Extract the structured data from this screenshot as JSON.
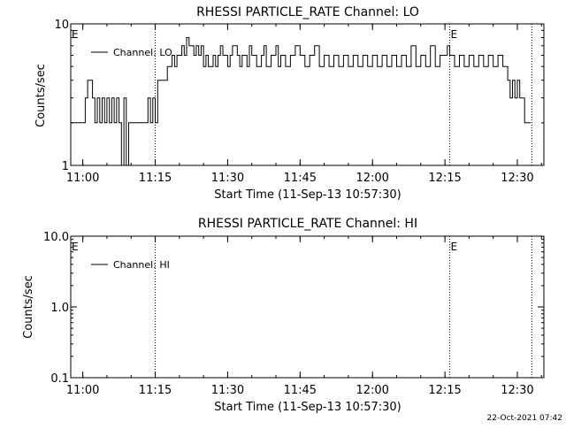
{
  "timestamp": "22-Oct-2021 07:42",
  "chart_data": [
    {
      "type": "line",
      "title": "RHESSI PARTICLE_RATE Channel: LO",
      "xlabel": "Start Time (11-Sep-13 10:57:30)",
      "ylabel": "Counts/sec",
      "yscale": "log",
      "ylim": [
        1,
        10
      ],
      "xlim": [
        "10:57:30",
        "12:35:30"
      ],
      "x_ticks": [
        "11:00",
        "11:15",
        "11:30",
        "11:45",
        "12:00",
        "12:15",
        "12:30"
      ],
      "y_ticks": [
        "1",
        "10"
      ],
      "flags": [
        {
          "label": "E",
          "time": "10:57:30"
        },
        {
          "label": "E",
          "time": "12:16:00"
        }
      ],
      "vlines": [
        "11:15:00",
        "12:16:00",
        "12:33:00"
      ],
      "series": [
        {
          "name": "Channel: LO",
          "x": [
            "10:57:30",
            "10:58:00",
            "10:59:00",
            "11:00:00",
            "11:00:30",
            "11:01:00",
            "11:02:00",
            "11:02:30",
            "11:03:00",
            "11:03:30",
            "11:04:00",
            "11:04:30",
            "11:05:00",
            "11:05:30",
            "11:06:00",
            "11:06:30",
            "11:07:00",
            "11:07:30",
            "11:08:00",
            "11:08:30",
            "11:09:00",
            "11:09:30",
            "11:10:00",
            "11:11:00",
            "11:12:00",
            "11:13:00",
            "11:13:30",
            "11:14:00",
            "11:14:30",
            "11:15:00",
            "11:15:30",
            "11:16:00",
            "11:17:00",
            "11:17:30",
            "11:18:00",
            "11:18:30",
            "11:19:00",
            "11:19:30",
            "11:20:00",
            "11:20:30",
            "11:21:00",
            "11:21:30",
            "11:22:00",
            "11:23:00",
            "11:23:30",
            "11:24:00",
            "11:24:30",
            "11:25:00",
            "11:25:30",
            "11:26:00",
            "11:27:00",
            "11:27:30",
            "11:28:00",
            "11:28:30",
            "11:29:00",
            "11:30:00",
            "11:30:30",
            "11:31:00",
            "11:32:00",
            "11:32:30",
            "11:33:00",
            "11:34:00",
            "11:34:30",
            "11:35:00",
            "11:36:00",
            "11:37:00",
            "11:37:30",
            "11:38:00",
            "11:39:00",
            "11:40:00",
            "11:40:30",
            "11:41:00",
            "11:42:00",
            "11:43:00",
            "11:44:00",
            "11:45:00",
            "11:46:00",
            "11:47:00",
            "11:48:00",
            "11:49:00",
            "11:50:00",
            "11:51:00",
            "11:52:00",
            "11:53:00",
            "11:54:00",
            "11:55:00",
            "11:56:00",
            "11:57:00",
            "11:58:00",
            "11:59:00",
            "12:00:00",
            "12:01:00",
            "12:02:00",
            "12:03:00",
            "12:04:00",
            "12:05:00",
            "12:06:00",
            "12:07:00",
            "12:08:00",
            "12:09:00",
            "12:10:00",
            "12:11:00",
            "12:12:00",
            "12:13:00",
            "12:14:00",
            "12:15:00",
            "12:15:30",
            "12:16:00",
            "12:17:00",
            "12:18:00",
            "12:19:00",
            "12:20:00",
            "12:21:00",
            "12:22:00",
            "12:23:00",
            "12:24:00",
            "12:25:00",
            "12:26:00",
            "12:27:00",
            "12:28:00",
            "12:28:30",
            "12:29:00",
            "12:29:30",
            "12:30:00",
            "12:30:30",
            "12:31:00",
            "12:31:30",
            "12:32:00",
            "12:32:30"
          ],
          "y": [
            2,
            2,
            2,
            2,
            3,
            4,
            3,
            2,
            3,
            2,
            3,
            2,
            3,
            2,
            3,
            2,
            3,
            2,
            1,
            3,
            1,
            2,
            2,
            2,
            2,
            2,
            3,
            2,
            3,
            2,
            4,
            4,
            4,
            5,
            5,
            6,
            5,
            6,
            6,
            7,
            6,
            8,
            7,
            6,
            7,
            6,
            7,
            5,
            6,
            5,
            6,
            5,
            6,
            7,
            6,
            5,
            6,
            7,
            6,
            5,
            6,
            5,
            7,
            6,
            5,
            6,
            7,
            5,
            6,
            7,
            5,
            6,
            5,
            6,
            7,
            6,
            5,
            6,
            7,
            5,
            6,
            5,
            6,
            5,
            6,
            5,
            6,
            5,
            6,
            5,
            6,
            5,
            6,
            5,
            6,
            5,
            6,
            5,
            7,
            5,
            6,
            5,
            7,
            5,
            6,
            6,
            7,
            6,
            5,
            6,
            5,
            6,
            5,
            6,
            5,
            6,
            5,
            6,
            5,
            4,
            3,
            4,
            3,
            4,
            3,
            3,
            2,
            2,
            2
          ]
        }
      ]
    },
    {
      "type": "line",
      "title": "RHESSI PARTICLE_RATE Channel: HI",
      "xlabel": "Start Time (11-Sep-13 10:57:30)",
      "ylabel": "Counts/sec",
      "yscale": "log",
      "ylim": [
        0.1,
        10
      ],
      "xlim": [
        "10:57:30",
        "12:35:30"
      ],
      "x_ticks": [
        "11:00",
        "11:15",
        "11:30",
        "11:45",
        "12:00",
        "12:15",
        "12:30"
      ],
      "y_ticks": [
        "0.1",
        "1.0",
        "10.0"
      ],
      "flags": [
        {
          "label": "E",
          "time": "10:57:30"
        },
        {
          "label": "E",
          "time": "12:16:00"
        }
      ],
      "vlines": [
        "11:15:00",
        "12:16:00",
        "12:33:00"
      ],
      "series": [
        {
          "name": "Channel: HI",
          "x": [],
          "y": []
        }
      ]
    }
  ]
}
